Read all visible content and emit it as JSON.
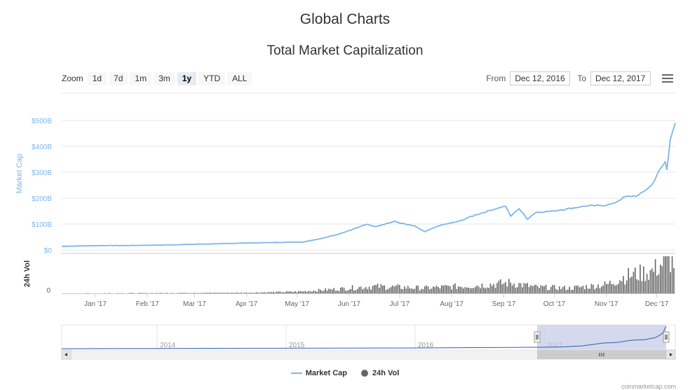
{
  "page": {
    "title": "Global Charts"
  },
  "toolbar": {
    "zoom_label": "Zoom",
    "buttons": [
      "1d",
      "7d",
      "1m",
      "3m",
      "1y",
      "YTD",
      "ALL"
    ],
    "active": "1y",
    "from_label": "From",
    "from_value": "Dec 12, 2016",
    "to_label": "To",
    "to_value": "Dec 12, 2017"
  },
  "legend": {
    "market_cap": "Market Cap",
    "volume": "24h Vol"
  },
  "credit": "coinmarketcap.com",
  "colors": {
    "market_cap": "#7cb5ec",
    "volume": "#666666",
    "navigator_mask": "#c2c9e6"
  },
  "icons": {
    "menu": "hamburger-icon"
  },
  "chart_data": {
    "type": "line",
    "title": "Total Market Capitalization",
    "xlabel": "",
    "ylabel": "Market Cap",
    "y2label": "24h Vol",
    "x_tick_labels": [
      "Jan '17",
      "Feb '17",
      "Mar '17",
      "Apr '17",
      "May '17",
      "Jun '17",
      "Jul '17",
      "Aug '17",
      "Sep '17",
      "Oct '17",
      "Nov '17",
      "Dec '17"
    ],
    "y_tick_labels": [
      "$0",
      "$100B",
      "$200B",
      "$300B",
      "$400B",
      "$500B"
    ],
    "y_ticks": [
      0,
      100,
      200,
      300,
      400,
      500
    ],
    "ylim": [
      0,
      500
    ],
    "y_unit": "billion USD",
    "y2_tick_labels": [
      "0"
    ],
    "grid": true,
    "legend_position": "bottom-center",
    "series": [
      {
        "name": "Market Cap",
        "x": [
          "2016-12-12",
          "2016-12-26",
          "2017-01-05",
          "2017-01-20",
          "2017-02-10",
          "2017-03-01",
          "2017-03-15",
          "2017-04-01",
          "2017-04-20",
          "2017-05-05",
          "2017-05-15",
          "2017-05-25",
          "2017-06-01",
          "2017-06-12",
          "2017-06-16",
          "2017-06-28",
          "2017-07-04",
          "2017-07-10",
          "2017-07-16",
          "2017-07-25",
          "2017-08-05",
          "2017-08-15",
          "2017-08-25",
          "2017-09-02",
          "2017-09-05",
          "2017-09-10",
          "2017-09-15",
          "2017-09-20",
          "2017-09-30",
          "2017-10-10",
          "2017-10-20",
          "2017-10-30",
          "2017-11-05",
          "2017-11-12",
          "2017-11-20",
          "2017-11-28",
          "2017-12-02",
          "2017-12-06",
          "2017-12-07",
          "2017-12-09",
          "2017-12-12"
        ],
        "values": [
          14,
          16,
          17,
          17,
          19,
          22,
          24,
          27,
          29,
          31,
          44,
          60,
          75,
          100,
          90,
          110,
          100,
          92,
          70,
          95,
          110,
          135,
          155,
          170,
          130,
          160,
          120,
          145,
          150,
          160,
          170,
          172,
          178,
          205,
          210,
          250,
          300,
          340,
          310,
          430,
          490
        ]
      },
      {
        "name": "24h Vol",
        "x": [
          "2016-12-12",
          "2017-02-01",
          "2017-04-01",
          "2017-05-01",
          "2017-05-25",
          "2017-06-15",
          "2017-07-15",
          "2017-08-15",
          "2017-09-05",
          "2017-09-20",
          "2017-10-10",
          "2017-11-01",
          "2017-11-13",
          "2017-11-28",
          "2017-12-08",
          "2017-12-12"
        ],
        "values": [
          0.2,
          0.4,
          0.8,
          2,
          5,
          8,
          6,
          9,
          12,
          7,
          6,
          10,
          20,
          25,
          40,
          35
        ]
      }
    ],
    "navigator": {
      "tick_labels": [
        "2014",
        "2015",
        "2016",
        "2017"
      ],
      "selected_range": [
        "Dec 12, 2016",
        "Dec 12, 2017"
      ]
    }
  }
}
